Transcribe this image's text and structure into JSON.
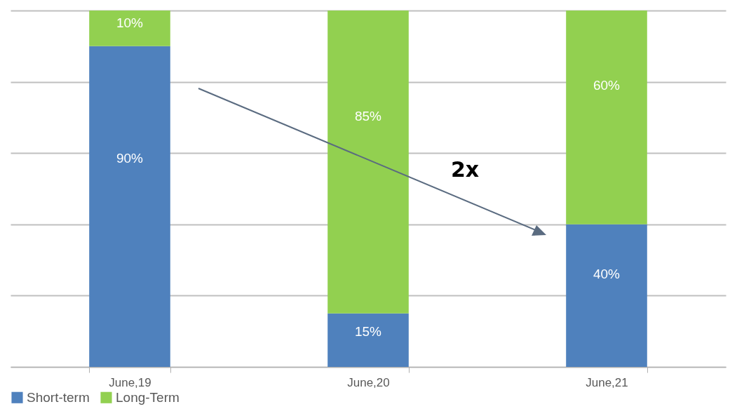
{
  "chart_data": {
    "type": "bar",
    "stacked": true,
    "categories": [
      "June,19",
      "June,20",
      "June,21"
    ],
    "series": [
      {
        "name": "Short-term",
        "color": "#4f81bd",
        "values": [
          90,
          15,
          40
        ],
        "value_labels": [
          "90%",
          "15%",
          "40%"
        ]
      },
      {
        "name": "Long-Term",
        "color": "#92d050",
        "values": [
          10,
          85,
          60
        ],
        "value_labels": [
          "10%",
          "85%",
          "60%"
        ]
      }
    ],
    "ylim": [
      0,
      100
    ],
    "yticks": [
      {
        "value": 0,
        "label": null
      },
      {
        "value": 20,
        "label": null
      },
      {
        "value": 40,
        "label": null
      },
      {
        "value": 60,
        "label": null
      },
      {
        "value": 80,
        "label": null
      },
      {
        "value": 100,
        "label": null
      }
    ],
    "tick_labels": "x",
    "grid": "y",
    "legend": "bottom",
    "annotations": [
      "2x"
    ]
  }
}
